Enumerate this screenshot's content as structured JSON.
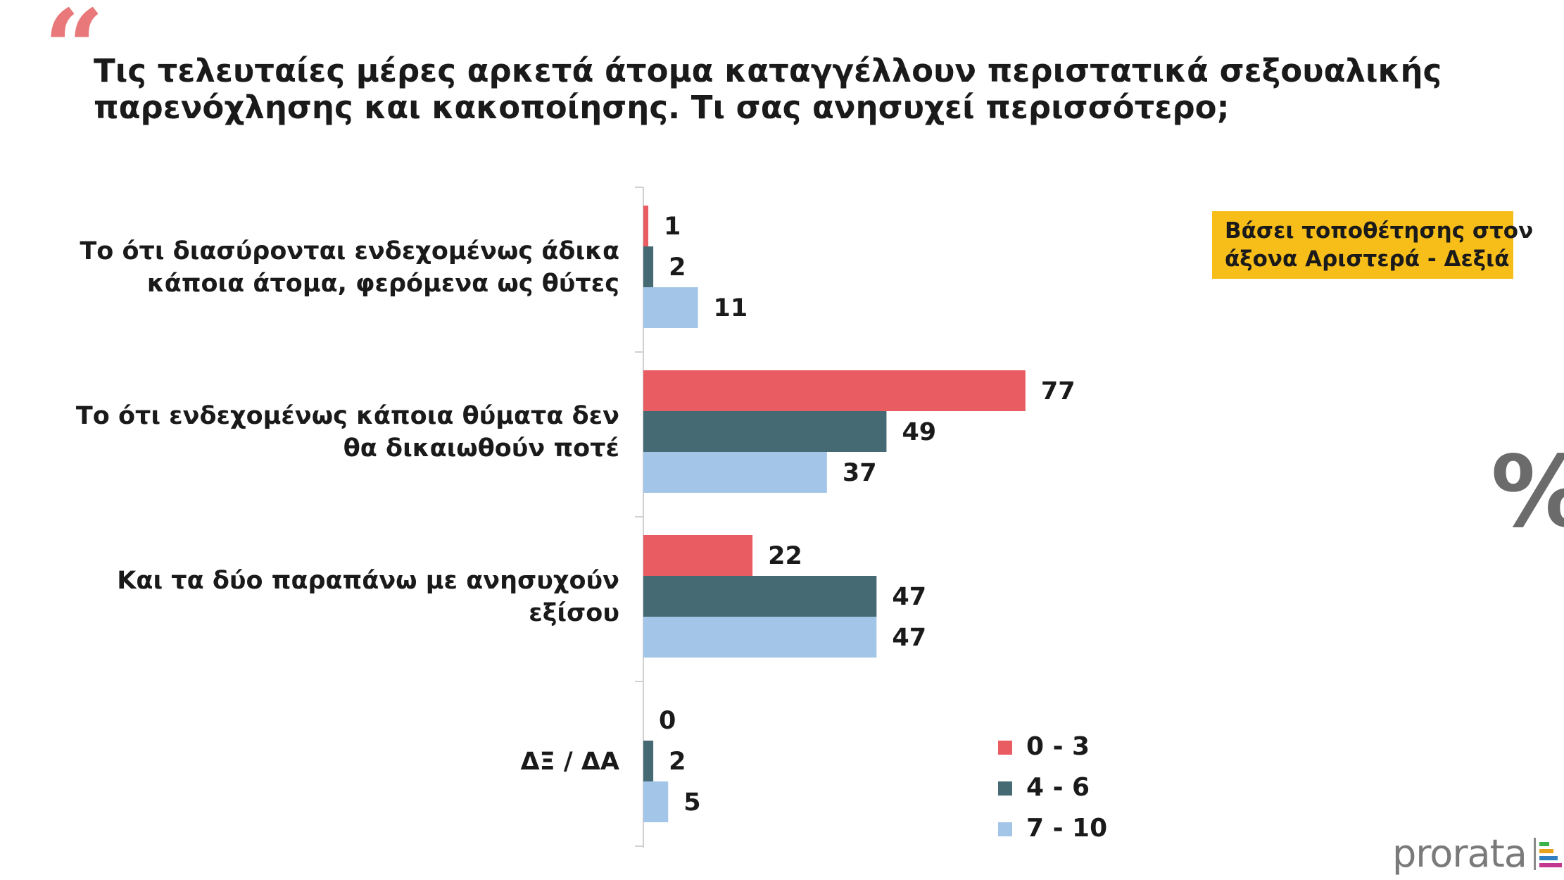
{
  "title": {
    "line1": "Τις τελευταίες μέρες αρκετά άτομα καταγγέλλουν περιστατικά σεξουαλικής",
    "line2": "παρενόχλησης και κακοποίησης. Τι σας ανησυχεί περισσότερο;"
  },
  "badge": {
    "line1": "Βάσει τοποθέτησης στον",
    "line2": "άξονα Αριστερά - Δεξιά"
  },
  "percent_symbol": "%",
  "logo": {
    "text": "prorata"
  },
  "colors": {
    "series_0_3": "#e85c62",
    "series_4_6": "#466a73",
    "series_7_10": "#a3c6e8",
    "quote": "#e8787a",
    "badge": "#f7be1a"
  },
  "chart_data": {
    "type": "bar",
    "orientation": "horizontal",
    "categories": [
      [
        "Το ότι διασύρονται ενδεχομένως άδικα",
        "κάποια άτομα, φερόμενα ως θύτες"
      ],
      [
        "Το ότι ενδεχομένως κάποια θύματα δεν",
        "θα δικαιωθούν ποτέ"
      ],
      [
        "Και τα δύο παραπάνω με ανησυχούν",
        "εξίσου"
      ],
      [
        "ΔΞ / ΔΑ"
      ]
    ],
    "series": [
      {
        "name": "0 - 3",
        "color": "#e85c62",
        "values": [
          1,
          77,
          22,
          0
        ]
      },
      {
        "name": "4 - 6",
        "color": "#466a73",
        "values": [
          2,
          49,
          47,
          2
        ]
      },
      {
        "name": "7 - 10",
        "color": "#a3c6e8",
        "values": [
          11,
          37,
          47,
          5
        ]
      }
    ],
    "xlim": [
      0,
      100
    ],
    "unit": "%",
    "legend_position": "bottom-right",
    "grid": false
  }
}
